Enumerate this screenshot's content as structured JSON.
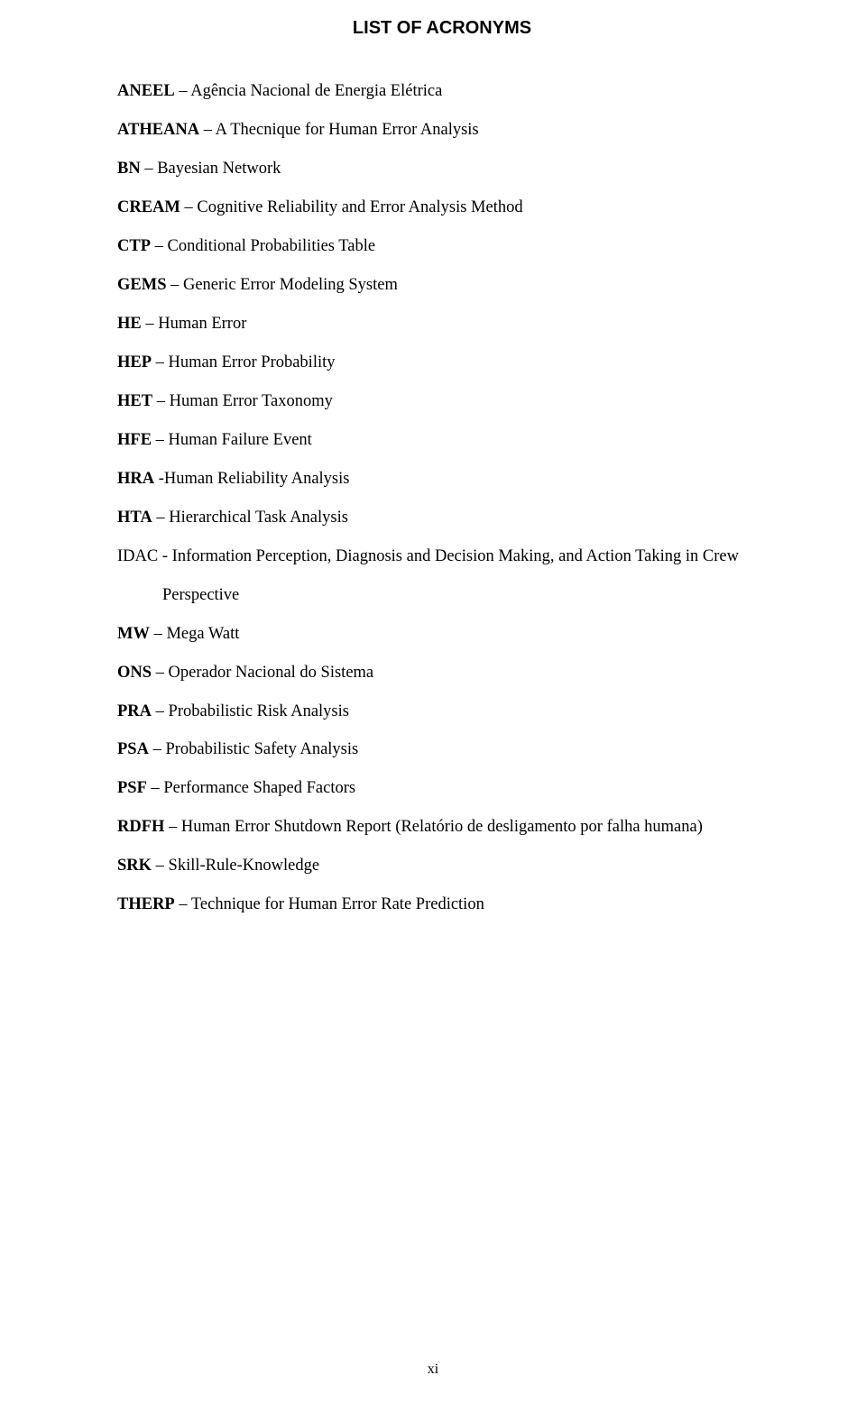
{
  "title": "LIST OF ACRONYMS",
  "page_number": "xi",
  "entries": [
    {
      "abbr": "ANEEL",
      "sep": " – ",
      "def": "Agência Nacional de Energia Elétrica"
    },
    {
      "abbr": "ATHEANA",
      "sep": " – ",
      "def": "A Thecnique for Human Error Analysis"
    },
    {
      "abbr": "BN",
      "sep": " – ",
      "def": "Bayesian Network"
    },
    {
      "abbr": "CREAM",
      "sep": " – ",
      "def": "Cognitive Reliability and Error Analysis Method"
    },
    {
      "abbr": "CTP",
      "sep": " – ",
      "def": "Conditional Probabilities Table"
    },
    {
      "abbr": "GEMS",
      "sep": " – ",
      "def": "Generic Error Modeling System"
    },
    {
      "abbr": "HE",
      "sep": " – ",
      "def": "Human Error"
    },
    {
      "abbr": "HEP",
      "sep": " – ",
      "def": "Human Error Probability"
    },
    {
      "abbr": "HET",
      "sep": " – ",
      "def": "Human Error Taxonomy"
    },
    {
      "abbr": "HFE",
      "sep": " – ",
      "def": "Human Failure Event"
    },
    {
      "abbr": "HRA",
      "sep": " -",
      "def": "Human Reliability Analysis"
    },
    {
      "abbr": "HTA",
      "sep": " – ",
      "def": "Hierarchical Task Analysis"
    }
  ],
  "idac": {
    "abbr": "IDAC",
    "sep": " - ",
    "line1_rest": "Information Perception, Diagnosis and Decision Making, and Action Taking in Crew",
    "line2": "Perspective"
  },
  "entries2": [
    {
      "abbr": "MW",
      "sep": " – ",
      "def": "Mega Watt"
    },
    {
      "abbr": "ONS",
      "sep": " – ",
      "def": "Operador Nacional do Sistema"
    },
    {
      "abbr": "PRA",
      "sep": " – ",
      "def": "Probabilistic Risk Analysis"
    },
    {
      "abbr": "PSA",
      "sep": " – ",
      "def": "Probabilistic Safety Analysis"
    },
    {
      "abbr": "PSF",
      "sep": " – ",
      "def": "Performance Shaped Factors"
    },
    {
      "abbr": "RDFH",
      "sep": " – ",
      "def": "Human Error Shutdown Report (Relatório de desligamento por falha humana)"
    },
    {
      "abbr": "SRK",
      "sep": " – ",
      "def": "Skill-Rule-Knowledge"
    },
    {
      "abbr": "THERP",
      "sep": " – ",
      "def": "Technique for Human Error Rate Prediction"
    }
  ]
}
